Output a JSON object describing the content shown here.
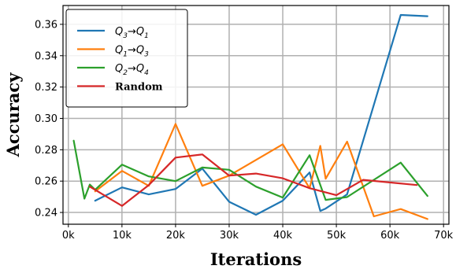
{
  "chart_data": {
    "type": "line",
    "xlabel": "Iterations",
    "ylabel": "Accuracy",
    "xlim": [
      -1000,
      71000
    ],
    "ylim": [
      0.2325,
      0.372
    ],
    "xticks": [
      0,
      10000,
      20000,
      30000,
      40000,
      50000,
      60000,
      70000
    ],
    "xtick_labels": [
      "0k",
      "10k",
      "20k",
      "30k",
      "40k",
      "50k",
      "60k",
      "70k"
    ],
    "yticks": [
      0.24,
      0.26,
      0.28,
      0.3,
      0.32,
      0.34,
      0.36
    ],
    "ytick_labels": [
      "0.24",
      "0.26",
      "0.28",
      "0.30",
      "0.32",
      "0.34",
      "0.36"
    ],
    "grid": true,
    "legend_position": "upper-left",
    "series": [
      {
        "name": "Q3→Q1",
        "legend": {
          "base": "Q",
          "sub1": "3",
          "arrow": "→",
          "base2": "Q",
          "sub2": "1"
        },
        "color": "#1f77b4",
        "x": [
          5000,
          10000,
          15000,
          20000,
          25000,
          30000,
          35000,
          40000,
          45000,
          47000,
          48000,
          52000,
          62000,
          67000
        ],
        "y": [
          0.2475,
          0.256,
          0.2515,
          0.255,
          0.268,
          0.2468,
          0.2385,
          0.2475,
          0.2655,
          0.241,
          0.2425,
          0.2515,
          0.366,
          0.3652
        ]
      },
      {
        "name": "Q1→Q3",
        "legend": {
          "base": "Q",
          "sub1": "1",
          "arrow": "→",
          "base2": "Q",
          "sub2": "3"
        },
        "color": "#ff7f0e",
        "x": [
          5000,
          10000,
          15000,
          20000,
          25000,
          30000,
          35000,
          40000,
          45000,
          47000,
          48000,
          52000,
          57000,
          62000,
          67000
        ],
        "y": [
          0.2535,
          0.2665,
          0.257,
          0.2965,
          0.257,
          0.2635,
          0.2735,
          0.2835,
          0.2555,
          0.2825,
          0.2615,
          0.2852,
          0.2375,
          0.2422,
          0.2358
        ]
      },
      {
        "name": "Q2→Q4",
        "legend": {
          "base": "Q",
          "sub1": "2",
          "arrow": "→",
          "base2": "Q",
          "sub2": "4"
        },
        "color": "#2ca02c",
        "x": [
          1000,
          3000,
          4000,
          5000,
          10000,
          15000,
          20000,
          25000,
          30000,
          35000,
          40000,
          45000,
          48000,
          52000,
          62000,
          67000
        ],
        "y": [
          0.2858,
          0.2488,
          0.2578,
          0.2545,
          0.2705,
          0.263,
          0.26,
          0.2687,
          0.2672,
          0.2565,
          0.2495,
          0.2765,
          0.248,
          0.2498,
          0.2718,
          0.2505
        ]
      },
      {
        "name": "Random",
        "legend": {
          "bold": "Random"
        },
        "color": "#d62728",
        "x": [
          4000,
          10000,
          15000,
          20000,
          25000,
          30000,
          35000,
          40000,
          45000,
          50000,
          55000,
          65000
        ],
        "y": [
          0.2565,
          0.2442,
          0.2575,
          0.275,
          0.277,
          0.2635,
          0.2648,
          0.2618,
          0.2555,
          0.251,
          0.2608,
          0.2575
        ]
      }
    ]
  }
}
